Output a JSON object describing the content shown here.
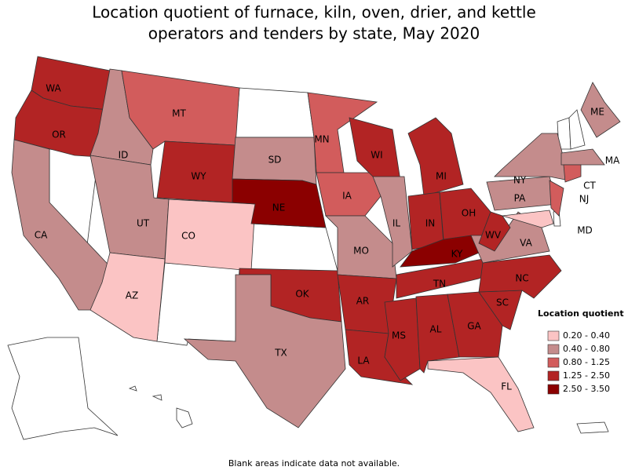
{
  "title": [
    "Location quotient of furnace, kiln, oven, drier, and kettle",
    "operators and tenders by state, May 2020"
  ],
  "legend": {
    "title": "Location quotient",
    "bins": [
      {
        "label": "0.20 - 0.40",
        "color": "#fbc4c4"
      },
      {
        "label": "0.40 - 0.80",
        "color": "#c48c8c"
      },
      {
        "label": "0.80 - 1.25",
        "color": "#d25c5c"
      },
      {
        "label": "1.25 - 2.50",
        "color": "#b22424"
      },
      {
        "label": "2.50 - 3.50",
        "color": "#8b0000"
      }
    ]
  },
  "states": [
    {
      "label": "WA",
      "bin": 3
    },
    {
      "label": "OR",
      "bin": 3
    },
    {
      "label": "CA",
      "bin": 1
    },
    {
      "label": "ID",
      "bin": 1
    },
    {
      "label": "MT",
      "bin": 2
    },
    {
      "label": "WY",
      "bin": 3
    },
    {
      "label": "UT",
      "bin": 1
    },
    {
      "label": "CO",
      "bin": 0
    },
    {
      "label": "AZ",
      "bin": 0
    },
    {
      "label": "SD",
      "bin": 1
    },
    {
      "label": "NE",
      "bin": 4
    },
    {
      "label": "OK",
      "bin": 3
    },
    {
      "label": "TX",
      "bin": 1
    },
    {
      "label": "MN",
      "bin": 2
    },
    {
      "label": "IA",
      "bin": 2
    },
    {
      "label": "MO",
      "bin": 1
    },
    {
      "label": "AR",
      "bin": 3
    },
    {
      "label": "LA",
      "bin": 3
    },
    {
      "label": "WI",
      "bin": 3
    },
    {
      "label": "IL",
      "bin": 1
    },
    {
      "label": "MI",
      "bin": 3
    },
    {
      "label": "IN",
      "bin": 3
    },
    {
      "label": "OH",
      "bin": 3
    },
    {
      "label": "KY",
      "bin": 4
    },
    {
      "label": "TN",
      "bin": 3
    },
    {
      "label": "MS",
      "bin": 3
    },
    {
      "label": "AL",
      "bin": 3
    },
    {
      "label": "GA",
      "bin": 3
    },
    {
      "label": "FL",
      "bin": 0
    },
    {
      "label": "SC",
      "bin": 3
    },
    {
      "label": "NC",
      "bin": 3
    },
    {
      "label": "VA",
      "bin": 1
    },
    {
      "label": "WV",
      "bin": 3
    },
    {
      "label": "PA",
      "bin": 1
    },
    {
      "label": "NY",
      "bin": 1
    },
    {
      "label": "NJ",
      "bin": 2
    },
    {
      "label": "MD",
      "bin": 0
    },
    {
      "label": "ME",
      "bin": 1
    },
    {
      "label": "MA",
      "bin": 1
    },
    {
      "label": "CT",
      "bin": 2
    }
  ],
  "footnote": "Blank areas indicate data not available."
}
